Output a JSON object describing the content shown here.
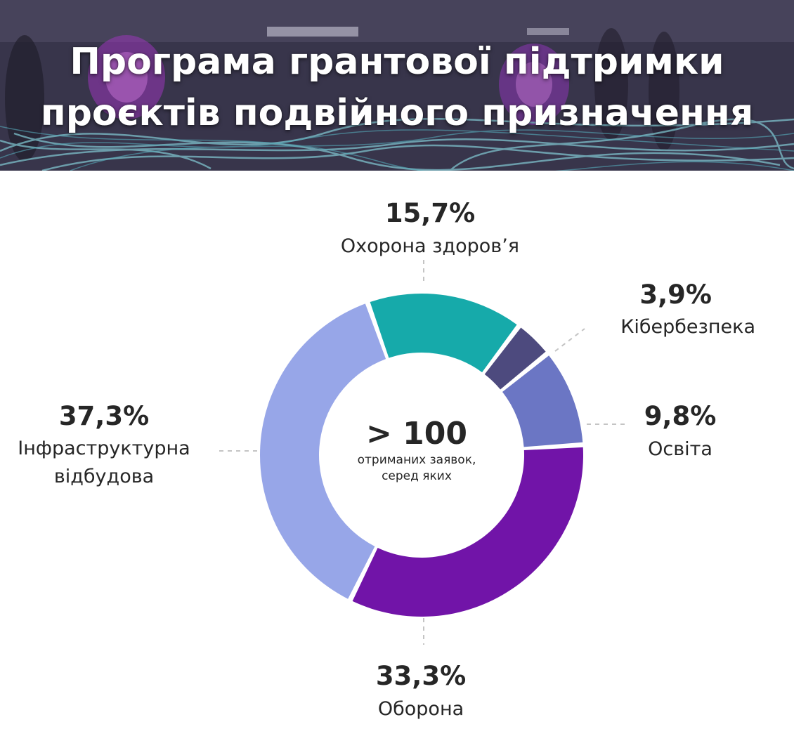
{
  "header": {
    "title_line1": "Програма грантової підтримки",
    "title_line2": "проєктів подвійного призначення"
  },
  "center": {
    "value": "> 100",
    "line1": "отриманих заявок,",
    "line2": "серед яких"
  },
  "chart_data": {
    "type": "pie",
    "donut": true,
    "unit": "%",
    "slices": [
      {
        "label": "Охорона здоров’я",
        "value_label": "15,7%",
        "value": 15.7,
        "color": "#16aaaa"
      },
      {
        "label": "Кібербезпека",
        "value_label": "3,9%",
        "value": 3.9,
        "color": "#4d4a7e"
      },
      {
        "label": "Освіта",
        "value_label": "9,8%",
        "value": 9.8,
        "color": "#6b76c4"
      },
      {
        "label": "Оборона",
        "value_label": "33,3%",
        "value": 33.3,
        "color": "#7114a8"
      },
      {
        "label": "Інфраструктурна відбудова",
        "label_lines": [
          "Інфраструктурна",
          "відбудова"
        ],
        "value_label": "37,3%",
        "value": 37.3,
        "color": "#97a6e8"
      }
    ]
  }
}
